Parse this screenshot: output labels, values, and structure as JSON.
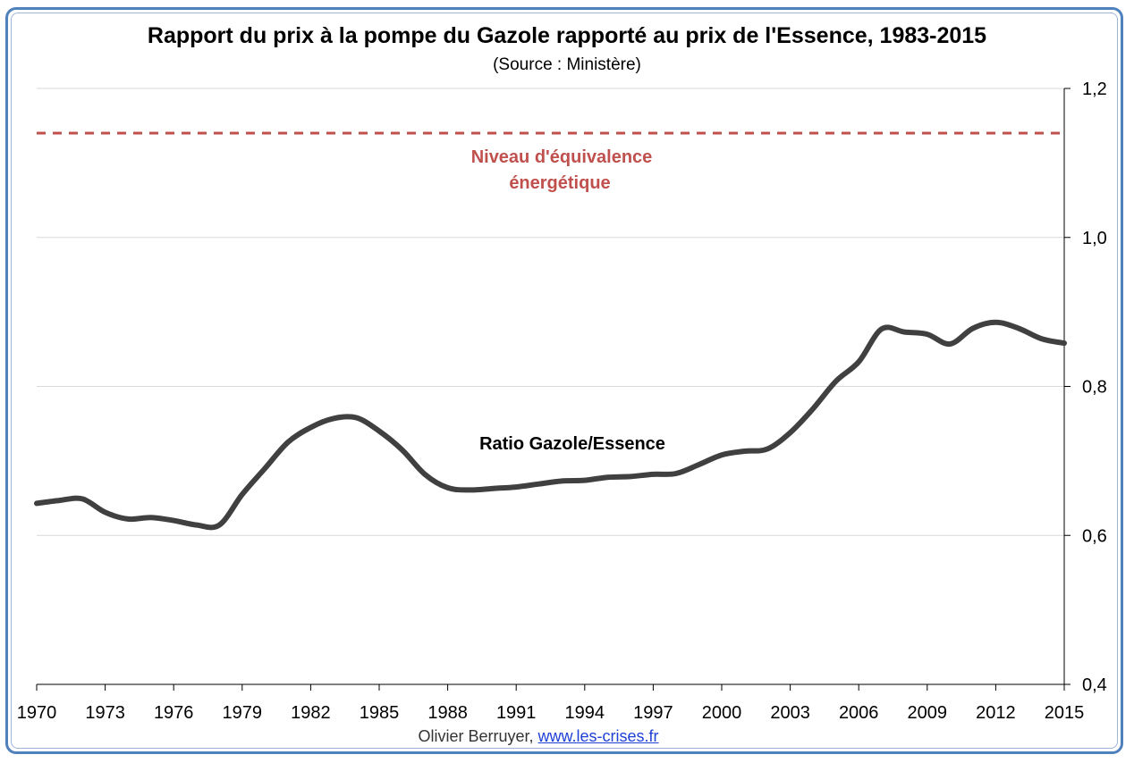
{
  "chart_data": {
    "type": "line",
    "title": "Rapport du prix à la pompe du Gazole rapporté au prix de l'Essence, 1983-2015",
    "subtitle": "(Source : Ministère)",
    "xlabel": "",
    "ylabel": "",
    "xlim": [
      1970,
      2015
    ],
    "ylim": [
      0.4,
      1.2
    ],
    "x_ticks": [
      "1970",
      "1973",
      "1976",
      "1979",
      "1982",
      "1985",
      "1988",
      "1991",
      "1994",
      "1997",
      "2000",
      "2003",
      "2006",
      "2009",
      "2012",
      "2015"
    ],
    "y_ticks": [
      "0,4",
      "0,6",
      "0,8",
      "1,0",
      "1,2"
    ],
    "y_tick_values": [
      0.4,
      0.6,
      0.8,
      1.0,
      1.2
    ],
    "grid": true,
    "y_axis_side": "right",
    "series": [
      {
        "name": "Ratio Gazole/Essence",
        "color": "#404040",
        "x": [
          1970,
          1971,
          1972,
          1973,
          1974,
          1975,
          1976,
          1977,
          1978,
          1979,
          1980,
          1981,
          1982,
          1983,
          1984,
          1985,
          1986,
          1987,
          1988,
          1989,
          1990,
          1991,
          1992,
          1993,
          1994,
          1995,
          1996,
          1997,
          1998,
          1999,
          2000,
          2001,
          2002,
          2003,
          2004,
          2005,
          2006,
          2007,
          2008,
          2009,
          2010,
          2011,
          2012,
          2013,
          2014,
          2015
        ],
        "values": [
          0.643,
          0.647,
          0.649,
          0.631,
          0.622,
          0.624,
          0.62,
          0.614,
          0.614,
          0.655,
          0.69,
          0.725,
          0.745,
          0.757,
          0.758,
          0.74,
          0.715,
          0.682,
          0.664,
          0.661,
          0.663,
          0.665,
          0.669,
          0.673,
          0.674,
          0.678,
          0.679,
          0.682,
          0.683,
          0.695,
          0.708,
          0.713,
          0.716,
          0.738,
          0.77,
          0.807,
          0.833,
          0.877,
          0.873,
          0.87,
          0.857,
          0.878,
          0.886,
          0.878,
          0.864,
          0.858
        ]
      }
    ],
    "reference_lines": [
      {
        "name": "Niveau d'équivalence énergétique",
        "y": 1.14,
        "color": "#c0504d",
        "style": "dashed"
      }
    ],
    "annotations": {
      "reference_label_line1": "Niveau d'équivalence",
      "reference_label_line2": "énergétique",
      "series_label": "Ratio Gazole/Essence"
    }
  },
  "footer": {
    "author": "Olivier Berruyer,",
    "link": "www.les-crises.fr"
  }
}
